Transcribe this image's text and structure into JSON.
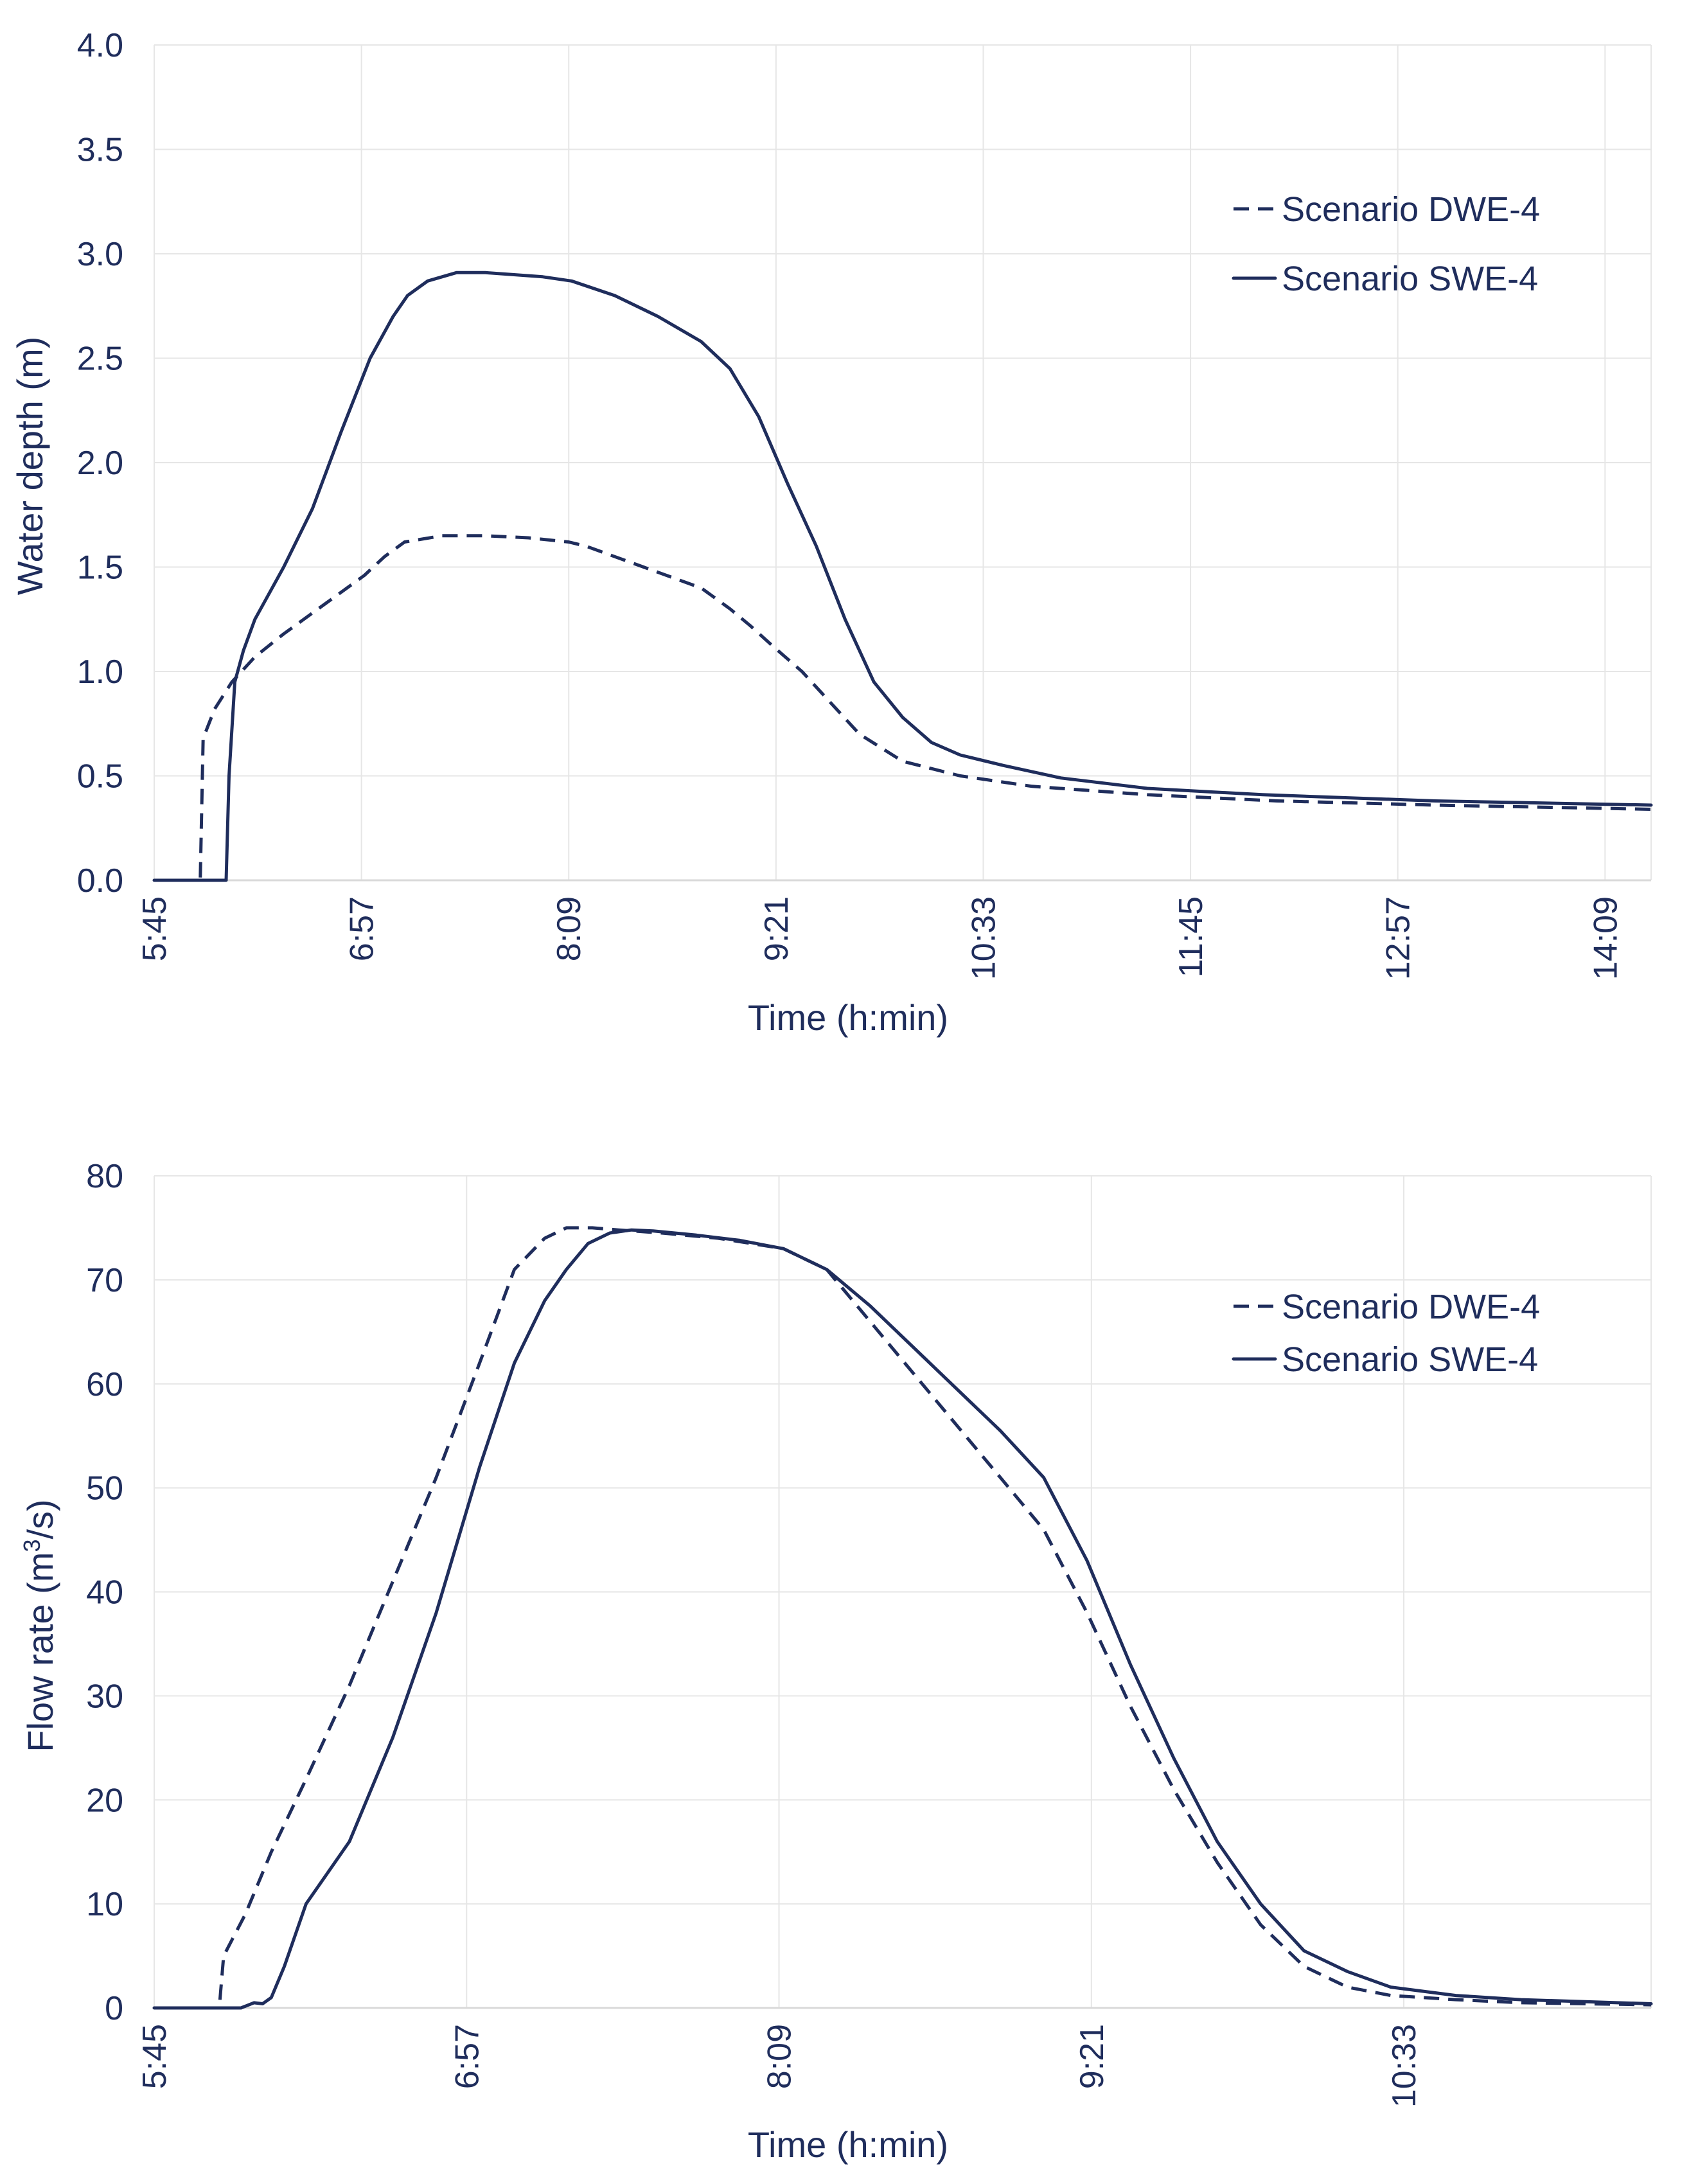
{
  "chart_data": [
    {
      "type": "line",
      "title": "",
      "xlabel": "Time (h:min)",
      "ylabel": "Water depth (m)",
      "x_tick_labels": [
        "5:45",
        "6:57",
        "8:09",
        "9:21",
        "10:33",
        "11:45",
        "12:57",
        "14:09"
      ],
      "xlim_minutes": [
        345,
        865
      ],
      "ylim": [
        0,
        4.0
      ],
      "y_ticks": [
        "0.0",
        "0.5",
        "1.0",
        "1.5",
        "2.0",
        "2.5",
        "3.0",
        "3.5",
        "4.0"
      ],
      "grid": true,
      "legend_position": "top-right",
      "series": [
        {
          "name": "Scenario DWE-4",
          "style": "dashed",
          "x_minutes": [
            345,
            361,
            362,
            366,
            372,
            380,
            390,
            400,
            410,
            418,
            425,
            432,
            445,
            460,
            475,
            489,
            495,
            505,
            515,
            525,
            535,
            545,
            552,
            560,
            570,
            580,
            590,
            605,
            625,
            650,
            690,
            735,
            790,
            865
          ],
          "values": [
            0.0,
            0.0,
            0.68,
            0.82,
            0.95,
            1.07,
            1.18,
            1.28,
            1.38,
            1.46,
            1.55,
            1.62,
            1.65,
            1.65,
            1.64,
            1.62,
            1.6,
            1.55,
            1.5,
            1.45,
            1.4,
            1.3,
            1.22,
            1.12,
            1.0,
            0.85,
            0.7,
            0.57,
            0.5,
            0.45,
            0.41,
            0.38,
            0.36,
            0.34
          ]
        },
        {
          "name": "Scenario SWE-4",
          "style": "solid",
          "x_minutes": [
            345,
            370,
            371,
            373,
            376,
            380,
            390,
            400,
            410,
            420,
            428,
            433,
            440,
            450,
            460,
            470,
            480,
            490,
            505,
            520,
            535,
            545,
            555,
            565,
            575,
            585,
            595,
            605,
            615,
            625,
            640,
            660,
            690,
            730,
            790,
            865
          ],
          "values": [
            0.0,
            0.0,
            0.5,
            0.95,
            1.1,
            1.25,
            1.5,
            1.78,
            2.15,
            2.5,
            2.7,
            2.8,
            2.87,
            2.91,
            2.91,
            2.9,
            2.89,
            2.87,
            2.8,
            2.7,
            2.58,
            2.45,
            2.22,
            1.9,
            1.6,
            1.25,
            0.95,
            0.78,
            0.66,
            0.6,
            0.55,
            0.49,
            0.44,
            0.41,
            0.38,
            0.36
          ]
        }
      ]
    },
    {
      "type": "line",
      "title": "",
      "xlabel": "Time (h:min)",
      "ylabel_main": "Flow rate (m",
      "ylabel_sup": "3",
      "ylabel_tail": "/s)",
      "x_tick_labels": [
        "5:45",
        "6:57",
        "8:09",
        "9:21",
        "10:33"
      ],
      "xlim_minutes": [
        345,
        690
      ],
      "ylim": [
        0,
        80
      ],
      "y_ticks": [
        "0",
        "10",
        "20",
        "30",
        "40",
        "50",
        "60",
        "70",
        "80"
      ],
      "grid": true,
      "legend_position": "top-right",
      "series": [
        {
          "name": "Scenario DWE-4",
          "style": "dashed",
          "x_minutes": [
            345,
            360,
            361,
            366,
            372,
            380,
            390,
            400,
            410,
            420,
            428,
            435,
            440,
            446,
            452,
            462,
            475,
            490,
            500,
            510,
            520,
            530,
            540,
            550,
            560,
            570,
            580,
            590,
            600,
            610,
            620,
            630,
            645,
            660,
            690
          ],
          "values": [
            0,
            0,
            5,
            9,
            15,
            22,
            31,
            41,
            51,
            62,
            71,
            74,
            75,
            75,
            74.8,
            74.5,
            74,
            73,
            71,
            66,
            61,
            56,
            51,
            46,
            38,
            29,
            21,
            14,
            8,
            4,
            2,
            1.2,
            0.8,
            0.5,
            0.3
          ]
        },
        {
          "name": "Scenario SWE-4",
          "style": "solid",
          "x_minutes": [
            345,
            365,
            368,
            370,
            372,
            375,
            380,
            390,
            400,
            410,
            420,
            428,
            435,
            440,
            445,
            450,
            455,
            460,
            470,
            480,
            490,
            500,
            510,
            520,
            530,
            540,
            550,
            560,
            570,
            580,
            590,
            600,
            610,
            620,
            630,
            645,
            660,
            690
          ],
          "values": [
            0,
            0,
            0.5,
            0.4,
            1,
            4,
            10,
            16,
            26,
            38,
            52,
            62,
            68,
            71,
            73.5,
            74.5,
            74.8,
            74.7,
            74.3,
            73.8,
            73,
            71,
            67.5,
            63.5,
            59.5,
            55.5,
            51,
            43,
            33,
            24,
            16,
            10,
            5.5,
            3.5,
            2,
            1.2,
            0.8,
            0.4
          ]
        }
      ]
    }
  ]
}
